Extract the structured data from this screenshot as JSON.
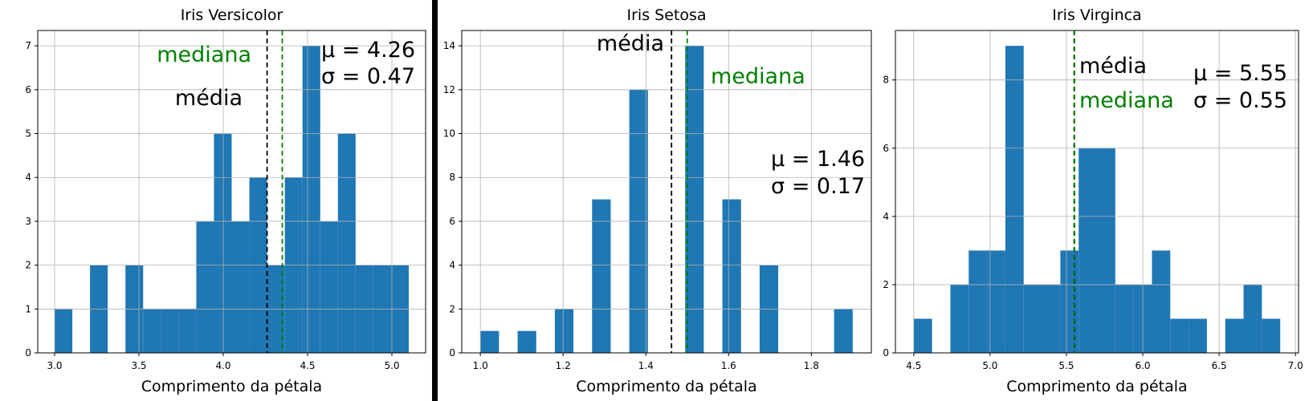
{
  "chart_data": [
    {
      "type": "histogram",
      "title": "Iris Versicolor",
      "xlabel": "Comprimento da pétala",
      "ylabel": "",
      "xlim": [
        2.9,
        5.2
      ],
      "ylim": [
        0,
        7.35
      ],
      "xticks": [
        3.0,
        3.5,
        4.0,
        4.5,
        5.0
      ],
      "xtick_labels": [
        "3.0",
        "3.5",
        "4.0",
        "4.5",
        "5.0"
      ],
      "yticks": [
        0,
        1,
        2,
        3,
        4,
        5,
        6,
        7
      ],
      "ytick_labels": [
        "0",
        "1",
        "2",
        "3",
        "4",
        "5",
        "6",
        "7"
      ],
      "bin_width": 0.105,
      "bins": [
        [
          3.0,
          1
        ],
        [
          3.105,
          0
        ],
        [
          3.21,
          2
        ],
        [
          3.315,
          0
        ],
        [
          3.42,
          2
        ],
        [
          3.525,
          1
        ],
        [
          3.63,
          1
        ],
        [
          3.735,
          1
        ],
        [
          3.84,
          3
        ],
        [
          3.945,
          5
        ],
        [
          4.05,
          3
        ],
        [
          4.155,
          4
        ],
        [
          4.26,
          2
        ],
        [
          4.365,
          4
        ],
        [
          4.47,
          7
        ],
        [
          4.575,
          3
        ],
        [
          4.68,
          5
        ],
        [
          4.785,
          2
        ],
        [
          4.89,
          2
        ],
        [
          4.995,
          2
        ]
      ],
      "grid": true,
      "color": "#1f77b4",
      "mean": 4.26,
      "median": 4.35,
      "mean_label": "média",
      "median_label": "mediana",
      "mu_text": "μ = 4.26",
      "sigma_text": "σ = 0.47",
      "mean_color": "#000000",
      "median_color": "#008000"
    },
    {
      "type": "histogram",
      "title": "Iris Setosa",
      "xlabel": "Comprimento da pétala",
      "ylabel": "",
      "xlim": [
        0.955,
        1.945
      ],
      "ylim": [
        0,
        14.7
      ],
      "xticks": [
        1.0,
        1.2,
        1.4,
        1.6,
        1.8
      ],
      "xtick_labels": [
        "1.0",
        "1.2",
        "1.4",
        "1.6",
        "1.8"
      ],
      "yticks": [
        0,
        2,
        4,
        6,
        8,
        10,
        12,
        14
      ],
      "ytick_labels": [
        "0",
        "2",
        "4",
        "6",
        "8",
        "10",
        "12",
        "14"
      ],
      "bin_width": 0.045,
      "bins": [
        [
          1.0,
          1
        ],
        [
          1.045,
          0
        ],
        [
          1.09,
          1
        ],
        [
          1.135,
          0
        ],
        [
          1.18,
          2
        ],
        [
          1.225,
          0
        ],
        [
          1.27,
          7
        ],
        [
          1.315,
          0
        ],
        [
          1.36,
          12
        ],
        [
          1.405,
          0
        ],
        [
          1.45,
          0
        ],
        [
          1.495,
          14
        ],
        [
          1.54,
          0
        ],
        [
          1.585,
          7
        ],
        [
          1.63,
          0
        ],
        [
          1.675,
          4
        ],
        [
          1.72,
          0
        ],
        [
          1.765,
          0
        ],
        [
          1.81,
          0
        ],
        [
          1.855,
          2
        ]
      ],
      "grid": true,
      "color": "#1f77b4",
      "mean": 1.462,
      "median": 1.5,
      "mean_label": "média",
      "median_label": "mediana",
      "mu_text": "μ = 1.46",
      "sigma_text": "σ = 0.17",
      "mean_color": "#000000",
      "median_color": "#008000"
    },
    {
      "type": "histogram",
      "title": "Iris Virginca",
      "xlabel": "Comprimento da pétala",
      "ylabel": "",
      "xlim": [
        4.38,
        7.02
      ],
      "ylim": [
        0,
        9.45
      ],
      "xticks": [
        4.5,
        5.0,
        5.5,
        6.0,
        6.5,
        7.0
      ],
      "xtick_labels": [
        "4.5",
        "5.0",
        "5.5",
        "6.0",
        "6.5",
        "7.0"
      ],
      "yticks": [
        0,
        2,
        4,
        6,
        8
      ],
      "ytick_labels": [
        "0",
        "2",
        "4",
        "6",
        "8"
      ],
      "bin_width": 0.12,
      "bins": [
        [
          4.5,
          1
        ],
        [
          4.62,
          0
        ],
        [
          4.74,
          2
        ],
        [
          4.86,
          3
        ],
        [
          4.98,
          3
        ],
        [
          5.1,
          9
        ],
        [
          5.22,
          2
        ],
        [
          5.34,
          2
        ],
        [
          5.46,
          3
        ],
        [
          5.58,
          6
        ],
        [
          5.7,
          6
        ],
        [
          5.82,
          2
        ],
        [
          5.94,
          2
        ],
        [
          6.06,
          3
        ],
        [
          6.18,
          1
        ],
        [
          6.3,
          1
        ],
        [
          6.42,
          0
        ],
        [
          6.54,
          1
        ],
        [
          6.66,
          2
        ],
        [
          6.78,
          1
        ]
      ],
      "grid": true,
      "color": "#1f77b4",
      "mean": 5.552,
      "median": 5.55,
      "mean_label": "média",
      "median_label": "mediana",
      "mu_text": "μ = 5.55",
      "sigma_text": "σ = 0.55",
      "mean_color": "#000000",
      "median_color": "#008000"
    }
  ]
}
